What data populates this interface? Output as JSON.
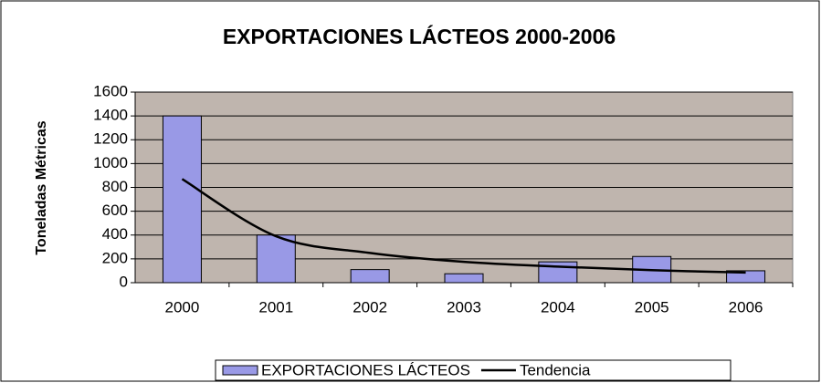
{
  "chart_data": {
    "type": "bar",
    "title": "EXPORTACIONES LÁCTEOS 2000-2006",
    "ylabel": "Toneladas Métricas",
    "categories": [
      "2000",
      "2001",
      "2002",
      "2003",
      "2004",
      "2005",
      "2006"
    ],
    "series": [
      {
        "name": "EXPORTACIONES LÁCTEOS",
        "color": "#9999e6",
        "type": "bar",
        "values": [
          1400,
          400,
          110,
          75,
          175,
          220,
          100
        ]
      },
      {
        "name": "Tendencia",
        "color": "#000000",
        "type": "line",
        "values": [
          870,
          390,
          250,
          175,
          135,
          105,
          85
        ]
      }
    ],
    "ylim": [
      0,
      1600
    ],
    "yticks": [
      0,
      200,
      400,
      600,
      800,
      1000,
      1200,
      1400,
      1600
    ],
    "grid": true,
    "legend": "bottom"
  }
}
